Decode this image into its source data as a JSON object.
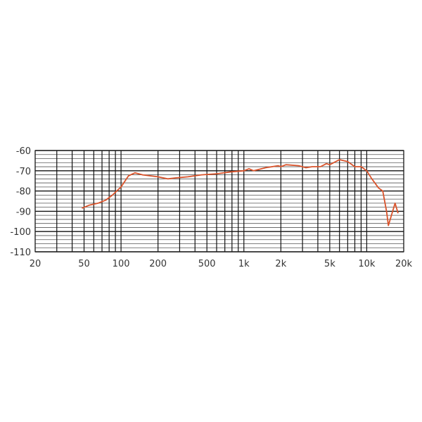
{
  "chart_data": {
    "type": "line",
    "title": "",
    "xlabel": "",
    "ylabel": "",
    "x_scale": "log",
    "xlim": [
      20,
      20000
    ],
    "ylim": [
      -110,
      -60
    ],
    "grid": true,
    "line_color": "#d9532b",
    "x_tick_values": [
      20,
      50,
      100,
      200,
      500,
      1000,
      2000,
      5000,
      10000,
      20000
    ],
    "x_tick_labels": [
      "20",
      "50",
      "100",
      "200",
      "500",
      "1k",
      "2k",
      "5k",
      "10k",
      "20k"
    ],
    "y_tick_values": [
      -60,
      -70,
      -80,
      -90,
      -100,
      -110
    ],
    "y_tick_labels": [
      "-60",
      "-70",
      "-80",
      "-90",
      "-100",
      "-110"
    ],
    "series": [
      {
        "x": [
          48,
          55,
          65,
          75,
          85,
          100,
          115,
          130,
          150,
          200,
          240,
          280,
          350,
          450,
          600,
          800,
          1000,
          1100,
          1200,
          1500,
          1900,
          2000,
          2200,
          2800,
          3200,
          3600,
          4200,
          4700,
          5000,
          6000,
          7000,
          8000,
          9000,
          10000,
          11000,
          12500,
          13500,
          14500,
          15000,
          17000,
          18000
        ],
        "y": [
          -88.5,
          -87,
          -86,
          -84.5,
          -82,
          -78,
          -72.5,
          -71,
          -72,
          -73,
          -74,
          -73.5,
          -73,
          -72,
          -71.5,
          -70.5,
          -70,
          -69,
          -70,
          -68.5,
          -67.5,
          -68,
          -67,
          -67.5,
          -68.5,
          -68,
          -68,
          -66.5,
          -67,
          -64.5,
          -65.5,
          -68,
          -68,
          -70,
          -74,
          -78.5,
          -80,
          -90,
          -97,
          -86,
          -91
        ]
      }
    ]
  }
}
